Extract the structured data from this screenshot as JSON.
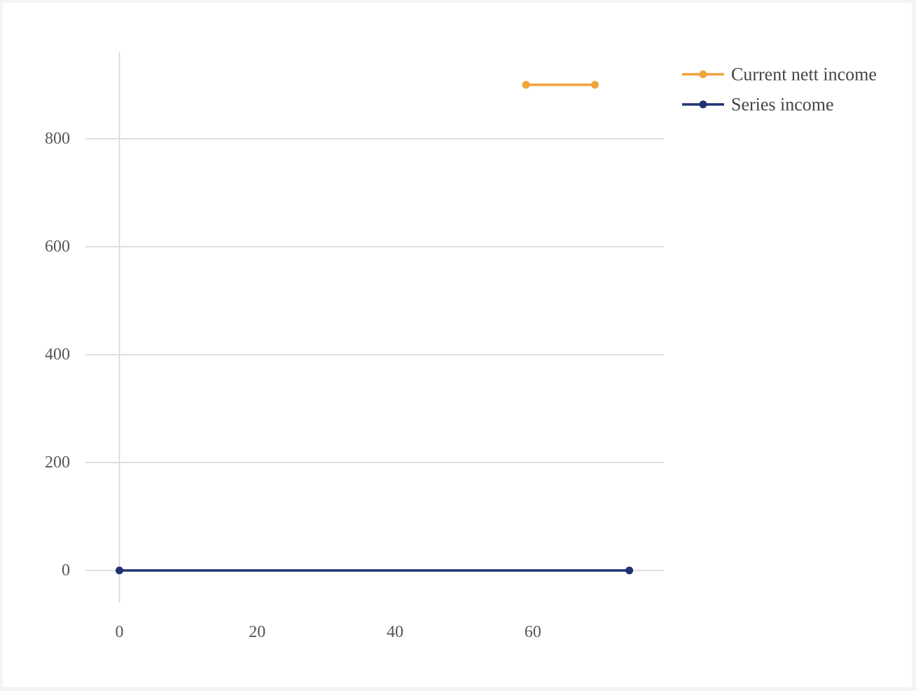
{
  "chart_data": {
    "type": "line",
    "title": "",
    "xlabel": "",
    "ylabel": "",
    "xlim": [
      -5,
      79
    ],
    "ylim": [
      -60,
      960
    ],
    "x_ticks": [
      0,
      20,
      40,
      60
    ],
    "y_ticks": [
      0,
      200,
      400,
      600,
      800
    ],
    "grid": {
      "y": true,
      "x": false
    },
    "legend_position": "top-right",
    "series": [
      {
        "name": "Current nett income",
        "color": "#f0a43a",
        "x": [
          59,
          69
        ],
        "y": [
          900,
          900
        ]
      },
      {
        "name": "Series income",
        "color": "#1f3370",
        "x": [
          0,
          74
        ],
        "y": [
          0,
          0
        ]
      }
    ]
  }
}
